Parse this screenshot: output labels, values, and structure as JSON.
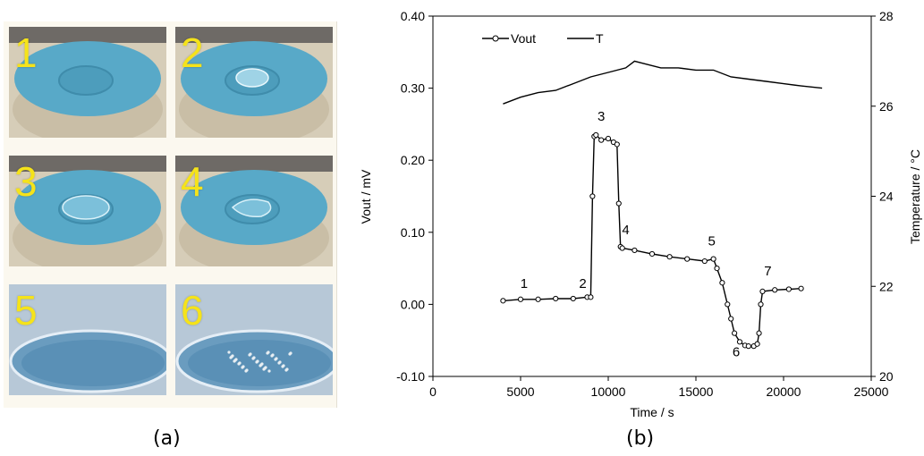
{
  "panels": {
    "left_caption": "(a)",
    "right_caption": "(b)"
  },
  "photos": [
    {
      "label": "1",
      "kind": "disc",
      "state": "dry"
    },
    {
      "label": "2",
      "kind": "disc",
      "state": "drop"
    },
    {
      "label": "3",
      "kind": "disc",
      "state": "spread"
    },
    {
      "label": "4",
      "kind": "disc",
      "state": "receding"
    },
    {
      "label": "5",
      "kind": "closeup",
      "state": "wet"
    },
    {
      "label": "6",
      "kind": "closeup",
      "state": "speckled"
    }
  ],
  "colors": {
    "disc": "#58a9c8",
    "label": "#f5e31a",
    "series": "#000000"
  },
  "chart_data": {
    "type": "line",
    "xlabel": "Time / s",
    "ylabel": "Vout / mV",
    "y2label": "Temperature / °C",
    "xlim": [
      0,
      25000
    ],
    "ylim": [
      -0.1,
      0.4
    ],
    "y2lim": [
      20,
      28
    ],
    "xticks": [
      "0",
      "5000",
      "10000",
      "15000",
      "20000",
      "25000"
    ],
    "yticks": [
      "-0.10",
      "0.00",
      "0.10",
      "0.20",
      "0.30",
      "0.40"
    ],
    "y2ticks": [
      "20",
      "22",
      "24",
      "26",
      "28"
    ],
    "legend": {
      "position": "top-left",
      "entries": [
        "Vout",
        "T"
      ]
    },
    "series": [
      {
        "name": "Vout",
        "axis": "left",
        "marker": "open-circle",
        "x": [
          4000,
          5000,
          6000,
          7000,
          8000,
          8800,
          9000,
          9100,
          9200,
          9300,
          9600,
          10000,
          10300,
          10500,
          10600,
          10700,
          10800,
          11500,
          12500,
          13500,
          14500,
          15500,
          16000,
          16200,
          16500,
          16800,
          17000,
          17200,
          17500,
          17800,
          18000,
          18300,
          18500,
          18600,
          18700,
          18800,
          19500,
          20300,
          21000
        ],
        "y": [
          0.005,
          0.007,
          0.007,
          0.008,
          0.008,
          0.01,
          0.01,
          0.15,
          0.233,
          0.235,
          0.228,
          0.23,
          0.225,
          0.222,
          0.14,
          0.08,
          0.078,
          0.075,
          0.07,
          0.066,
          0.063,
          0.06,
          0.063,
          0.05,
          0.03,
          0.0,
          -0.02,
          -0.04,
          -0.052,
          -0.057,
          -0.058,
          -0.058,
          -0.055,
          -0.04,
          0.0,
          0.018,
          0.02,
          0.021,
          0.022
        ]
      },
      {
        "name": "T",
        "axis": "right",
        "marker": "none",
        "x": [
          4000,
          5000,
          6000,
          7000,
          8000,
          9000,
          10000,
          11000,
          11500,
          12000,
          13000,
          14000,
          15000,
          16000,
          17000,
          18000,
          19000,
          20000,
          21000,
          22200
        ],
        "y": [
          26.05,
          26.2,
          26.3,
          26.35,
          26.5,
          26.65,
          26.75,
          26.85,
          27.0,
          26.95,
          26.85,
          26.85,
          26.8,
          26.8,
          26.65,
          26.6,
          26.55,
          26.5,
          26.45,
          26.4
        ]
      }
    ],
    "annotations": [
      {
        "text": "1",
        "x": 5200,
        "y": 0.023
      },
      {
        "text": "2",
        "x": 8550,
        "y": 0.023
      },
      {
        "text": "3",
        "x": 9600,
        "y": 0.255
      },
      {
        "text": "4",
        "x": 11000,
        "y": 0.097
      },
      {
        "text": "5",
        "x": 15900,
        "y": 0.082
      },
      {
        "text": "6",
        "x": 17300,
        "y": -0.072
      },
      {
        "text": "7",
        "x": 19100,
        "y": 0.04
      }
    ]
  }
}
